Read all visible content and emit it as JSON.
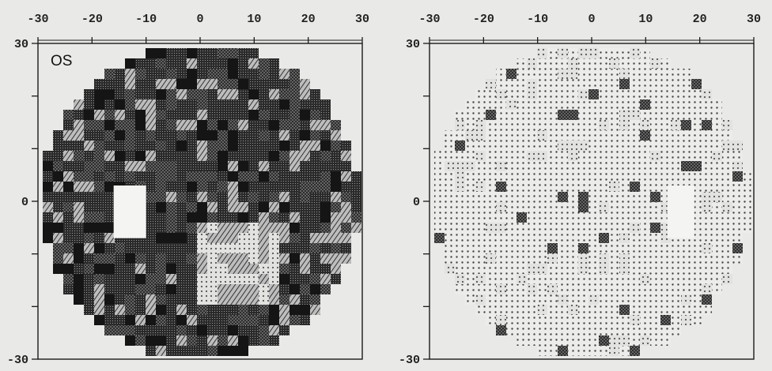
{
  "chart_data": [
    {
      "type": "heatmap",
      "eye_label": "OS",
      "xlim": [
        -30,
        30
      ],
      "ylim": [
        -30,
        30
      ],
      "x_tick_labels": [
        "-30",
        "-20",
        "-10",
        "0",
        "10",
        "20",
        "30"
      ],
      "y_tick_labels": [
        "30",
        "0",
        "-30"
      ],
      "field_shape": "circular",
      "blind_spot": {
        "x": [
          -16,
          -10
        ],
        "y": [
          -7,
          3
        ]
      },
      "description_values": "grayscale visual field, severe generalized depression with relatively spared inferior-central region"
    },
    {
      "type": "heatmap",
      "eye_label": "",
      "xlim": [
        -30,
        30
      ],
      "ylim": [
        -30,
        30
      ],
      "x_tick_labels": [
        "-30",
        "-20",
        "-10",
        "0",
        "10",
        "20",
        "30"
      ],
      "y_tick_labels": [
        "30",
        "0",
        "-30"
      ],
      "field_shape": "circular",
      "blind_spot": {
        "x": [
          14,
          19
        ],
        "y": [
          -7,
          3
        ]
      },
      "description_values": "grayscale visual field, mostly normal sensitivity"
    }
  ],
  "colors": {
    "background": "#e9e9e7",
    "ink": "#1a1a1a"
  }
}
